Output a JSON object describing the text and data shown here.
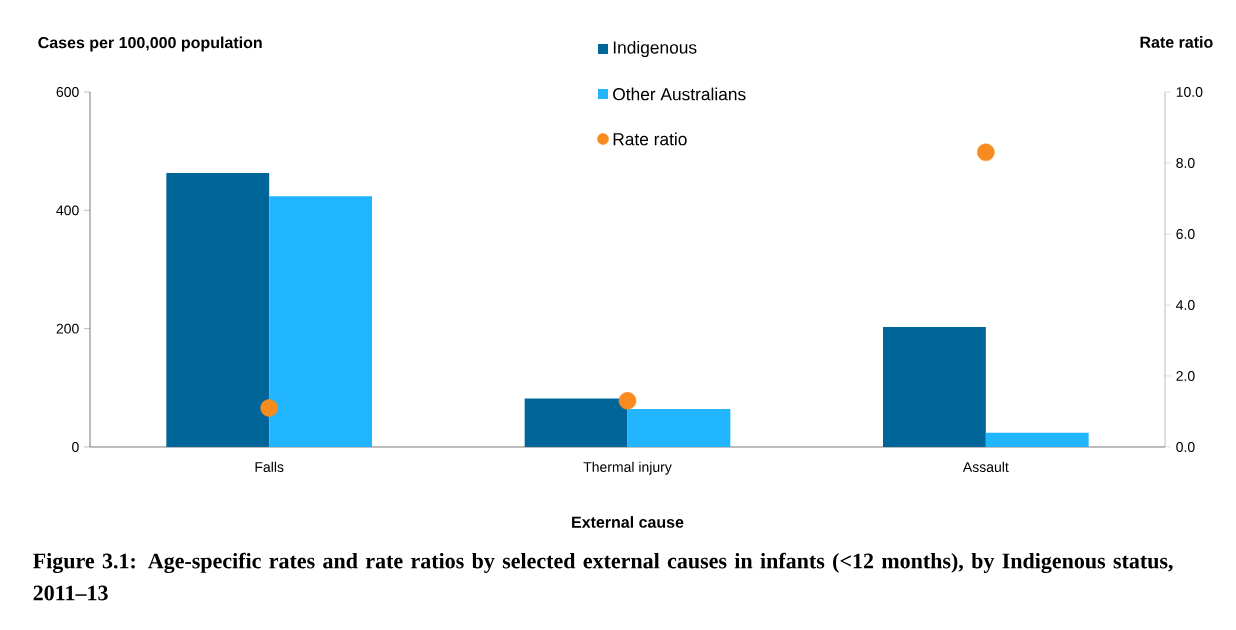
{
  "chart_data": {
    "type": "bar",
    "categories": [
      "Falls",
      "Thermal injury",
      "Assault"
    ],
    "xlabel": "External cause",
    "ylabel": "Cases per 100,000 population",
    "y2label": "Rate ratio",
    "ylim": [
      0,
      600
    ],
    "yticks": [
      0,
      200,
      400,
      600
    ],
    "y2lim": [
      0,
      10
    ],
    "y2ticks": [
      {
        "value": 0,
        "label": "0.0"
      },
      {
        "value": 2,
        "label": "2.0"
      },
      {
        "value": 4,
        "label": "4.0"
      },
      {
        "value": 6,
        "label": "6.0"
      },
      {
        "value": 8,
        "label": "8.0"
      },
      {
        "value": 10,
        "label": "10.0"
      }
    ],
    "series": [
      {
        "name": "Indigenous",
        "color": "#006699",
        "values": [
          463,
          82,
          203
        ]
      },
      {
        "name": "Other Australians",
        "color": "#21b4ff",
        "values": [
          424,
          64,
          24
        ]
      },
      {
        "name": "Rate ratio",
        "type": "scatter",
        "axis": "y2",
        "marker": "circle",
        "color": "#f78b1f",
        "x": [
          "Falls",
          "Thermal injury",
          "Assault"
        ],
        "values": [
          1.1,
          1.3,
          8.3
        ]
      }
    ],
    "legend": "top",
    "grid": false,
    "annotations": [
      "Figure 3.1: Age-specific rates and rate ratios by selected external causes in infants (<12 months), by Indigenous status, 2011–13"
    ]
  }
}
